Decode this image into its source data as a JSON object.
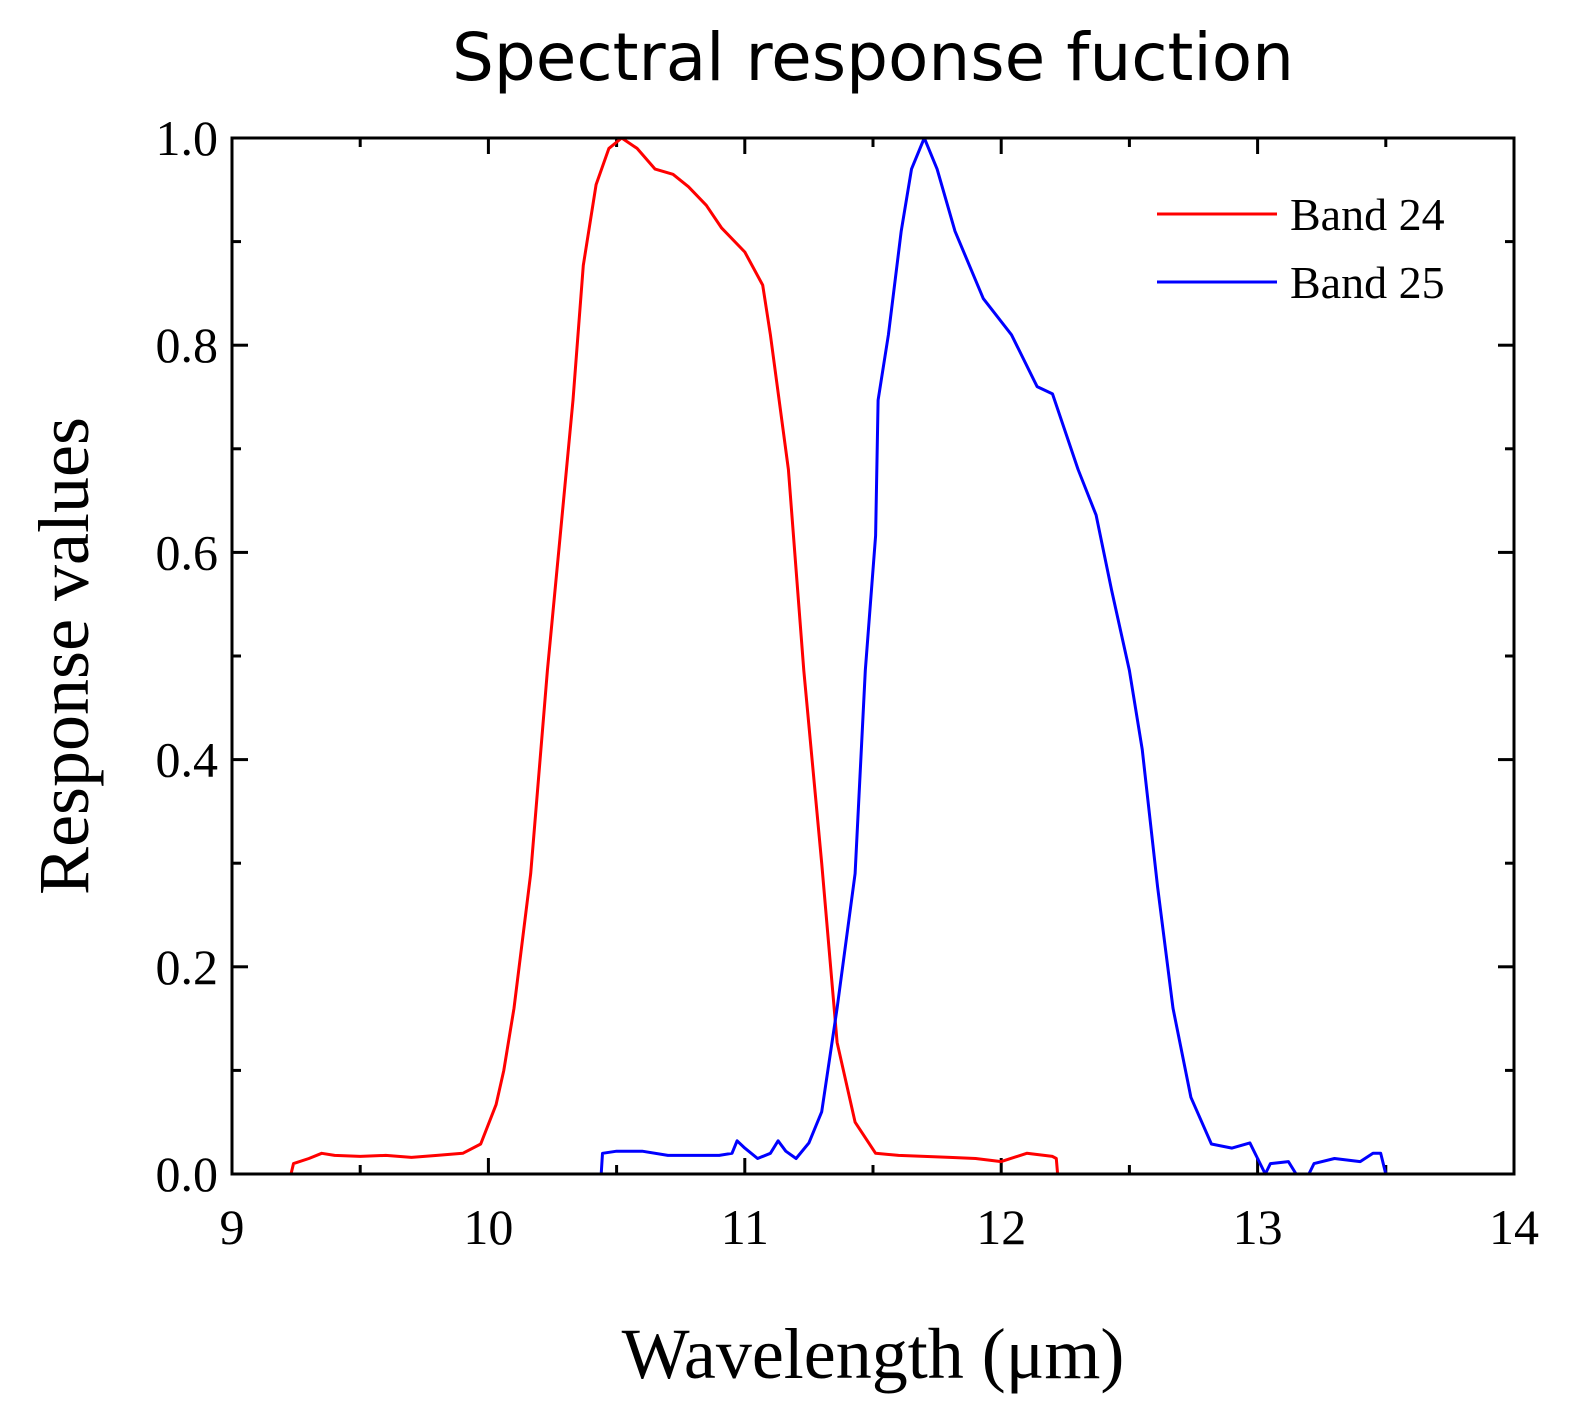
{
  "chart_data": {
    "type": "line",
    "title": "Spectral response fuction",
    "xlabel": "Wavelength (μm)",
    "ylabel": "Response values",
    "xlim": [
      9,
      14
    ],
    "ylim": [
      0,
      1.0
    ],
    "xticks": [
      9,
      10,
      11,
      12,
      13,
      14
    ],
    "xtick_labels": [
      "9",
      "10",
      "11",
      "12",
      "13",
      "14"
    ],
    "yticks": [
      0,
      0.2,
      0.4,
      0.6,
      0.8,
      1.0
    ],
    "ytick_labels": [
      "0.0",
      "0.2",
      "0.4",
      "0.6",
      "0.8",
      "1.0"
    ],
    "grid": false,
    "legend_position": "top-right",
    "series": [
      {
        "name": "Band 24",
        "color": "#ff0000",
        "x": [
          9.23,
          9.24,
          9.3,
          9.35,
          9.4,
          9.5,
          9.6,
          9.7,
          9.8,
          9.9,
          9.97,
          10.03,
          10.06,
          10.1,
          10.165,
          10.23,
          10.28,
          10.33,
          10.37,
          10.42,
          10.47,
          10.52,
          10.58,
          10.65,
          10.72,
          10.78,
          10.85,
          10.91,
          11.0,
          11.07,
          11.1,
          11.17,
          11.23,
          11.3,
          11.36,
          11.43,
          11.51,
          11.6,
          11.7,
          11.8,
          11.9,
          12.0,
          12.1,
          12.2,
          12.215,
          12.22
        ],
        "y": [
          0.0,
          0.01,
          0.015,
          0.02,
          0.018,
          0.017,
          0.018,
          0.016,
          0.018,
          0.02,
          0.029,
          0.067,
          0.1,
          0.16,
          0.29,
          0.486,
          0.616,
          0.747,
          0.877,
          0.955,
          0.99,
          1.0,
          0.99,
          0.97,
          0.965,
          0.953,
          0.935,
          0.913,
          0.89,
          0.858,
          0.81,
          0.68,
          0.486,
          0.3,
          0.127,
          0.05,
          0.02,
          0.018,
          0.017,
          0.016,
          0.015,
          0.012,
          0.02,
          0.017,
          0.015,
          0.0
        ]
      },
      {
        "name": "Band 25",
        "color": "#0000ff",
        "x": [
          10.44,
          10.445,
          10.5,
          10.6,
          10.7,
          10.8,
          10.9,
          10.95,
          10.97,
          11.0,
          11.05,
          11.1,
          11.13,
          11.16,
          11.2,
          11.25,
          11.3,
          11.36,
          11.43,
          11.47,
          11.51,
          11.52,
          11.56,
          11.61,
          11.65,
          11.7,
          11.75,
          11.82,
          11.93,
          12.04,
          12.14,
          12.2,
          12.3,
          12.37,
          12.43,
          12.5,
          12.55,
          12.61,
          12.67,
          12.74,
          12.82,
          12.9,
          12.97,
          13.0,
          13.03,
          13.05,
          13.12,
          13.15,
          13.2,
          13.22,
          13.3,
          13.4,
          13.45,
          13.48,
          13.5,
          13.52
        ],
        "y": [
          0.0,
          0.02,
          0.022,
          0.022,
          0.018,
          0.018,
          0.018,
          0.02,
          0.032,
          0.025,
          0.015,
          0.02,
          0.032,
          0.022,
          0.015,
          0.03,
          0.06,
          0.16,
          0.29,
          0.486,
          0.616,
          0.747,
          0.81,
          0.91,
          0.97,
          1.0,
          0.97,
          0.91,
          0.845,
          0.81,
          0.76,
          0.753,
          0.68,
          0.636,
          0.564,
          0.486,
          0.41,
          0.277,
          0.16,
          0.074,
          0.029,
          0.025,
          0.03,
          0.015,
          0.0,
          0.01,
          0.012,
          0.0,
          0.0,
          0.01,
          0.015,
          0.012,
          0.02,
          0.02,
          0.0,
          0.0
        ]
      }
    ]
  }
}
